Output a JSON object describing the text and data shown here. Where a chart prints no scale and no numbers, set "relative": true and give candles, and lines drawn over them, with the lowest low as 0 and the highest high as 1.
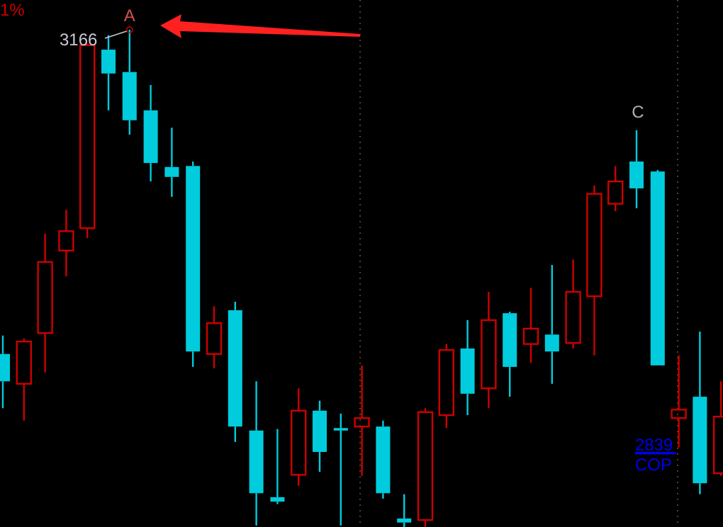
{
  "chart_data": {
    "type": "candlestick",
    "relative": true,
    "categories": [
      null,
      null,
      null,
      null,
      null,
      null,
      null,
      null,
      null,
      null,
      null,
      null,
      null,
      null,
      null,
      null,
      null,
      null,
      null,
      null,
      null,
      null,
      null,
      null,
      null,
      null,
      null,
      null,
      null,
      null,
      null,
      null,
      null,
      null,
      null
    ],
    "ohlc": [
      [
        0.348,
        0.385,
        0.239,
        0.293
      ],
      [
        0.288,
        0.379,
        0.214,
        0.373
      ],
      [
        0.39,
        0.59,
        0.311,
        0.533
      ],
      [
        0.556,
        0.638,
        0.504,
        0.595
      ],
      [
        0.601,
        0.972,
        0.581,
        0.969
      ],
      [
        0.96,
        0.989,
        0.838,
        0.912
      ],
      [
        0.915,
        1,
        0.789,
        0.818
      ],
      [
        0.838,
        0.889,
        0.695,
        0.732
      ],
      [
        0.724,
        0.803,
        0.664,
        0.704
      ],
      [
        0.726,
        0.735,
        0.322,
        0.353
      ],
      [
        0.348,
        0.444,
        0.319,
        0.41
      ],
      [
        0.436,
        0.453,
        0.171,
        0.202
      ],
      [
        0.194,
        0.293,
        0.003,
        0.068
      ],
      [
        0.06,
        0.197,
        0.046,
        0.051
      ],
      [
        0.105,
        0.279,
        0.083,
        0.234
      ],
      [
        0.234,
        0.254,
        0.111,
        0.151
      ],
      [
        0.199,
        0.228,
        0.003,
        0.194
      ],
      [
        0.202,
        0.325,
        0.103,
        0.219
      ],
      [
        0.202,
        0.214,
        0.057,
        0.068
      ],
      [
        0.017,
        0.066,
        0,
        0.009
      ],
      [
        0.014,
        0.239,
        0,
        0.231
      ],
      [
        0.225,
        0.368,
        0.199,
        0.356
      ],
      [
        0.359,
        0.416,
        0.225,
        0.268
      ],
      [
        0.279,
        0.473,
        0.239,
        0.416
      ],
      [
        0.43,
        0.433,
        0.262,
        0.322
      ],
      [
        0.368,
        0.481,
        0.33,
        0.399
      ],
      [
        0.387,
        0.527,
        0.288,
        0.353
      ],
      [
        0.37,
        0.538,
        0.359,
        0.473
      ],
      [
        0.464,
        0.687,
        0.345,
        0.67
      ],
      [
        0.65,
        0.726,
        0.635,
        0.695
      ],
      [
        0.735,
        0.798,
        0.641,
        0.681
      ],
      [
        0.715,
        0.718,
        0.325,
        0.325
      ],
      [
        0.219,
        0.345,
        0.16,
        0.236
      ],
      [
        0.262,
        0.393,
        0.066,
        0.088
      ],
      [
        0.108,
        0.293,
        0.103,
        0.222
      ]
    ],
    "colors": [
      "#00ccdd",
      "#cc0000",
      "#cc0000",
      "#cc0000",
      "#cc0000",
      "#00ccdd",
      "#00ccdd",
      "#00ccdd",
      "#00ccdd",
      "#00ccdd",
      "#cc0000",
      "#00ccdd",
      "#00ccdd",
      "#00ccdd",
      "#cc0000",
      "#00ccdd",
      "#00ccdd",
      "#cc0000",
      "#00ccdd",
      "#00ccdd",
      "#cc0000",
      "#cc0000",
      "#00ccdd",
      "#cc0000",
      "#00ccdd",
      "#cc0000",
      "#00ccdd",
      "#cc0000",
      "#cc0000",
      "#cc0000",
      "#00ccdd",
      "#00ccdd",
      "#cc0000",
      "#00ccdd",
      "#cc0000"
    ],
    "annotations": [
      "1%",
      "A",
      "3166",
      "C",
      "2839",
      "COP"
    ]
  }
}
